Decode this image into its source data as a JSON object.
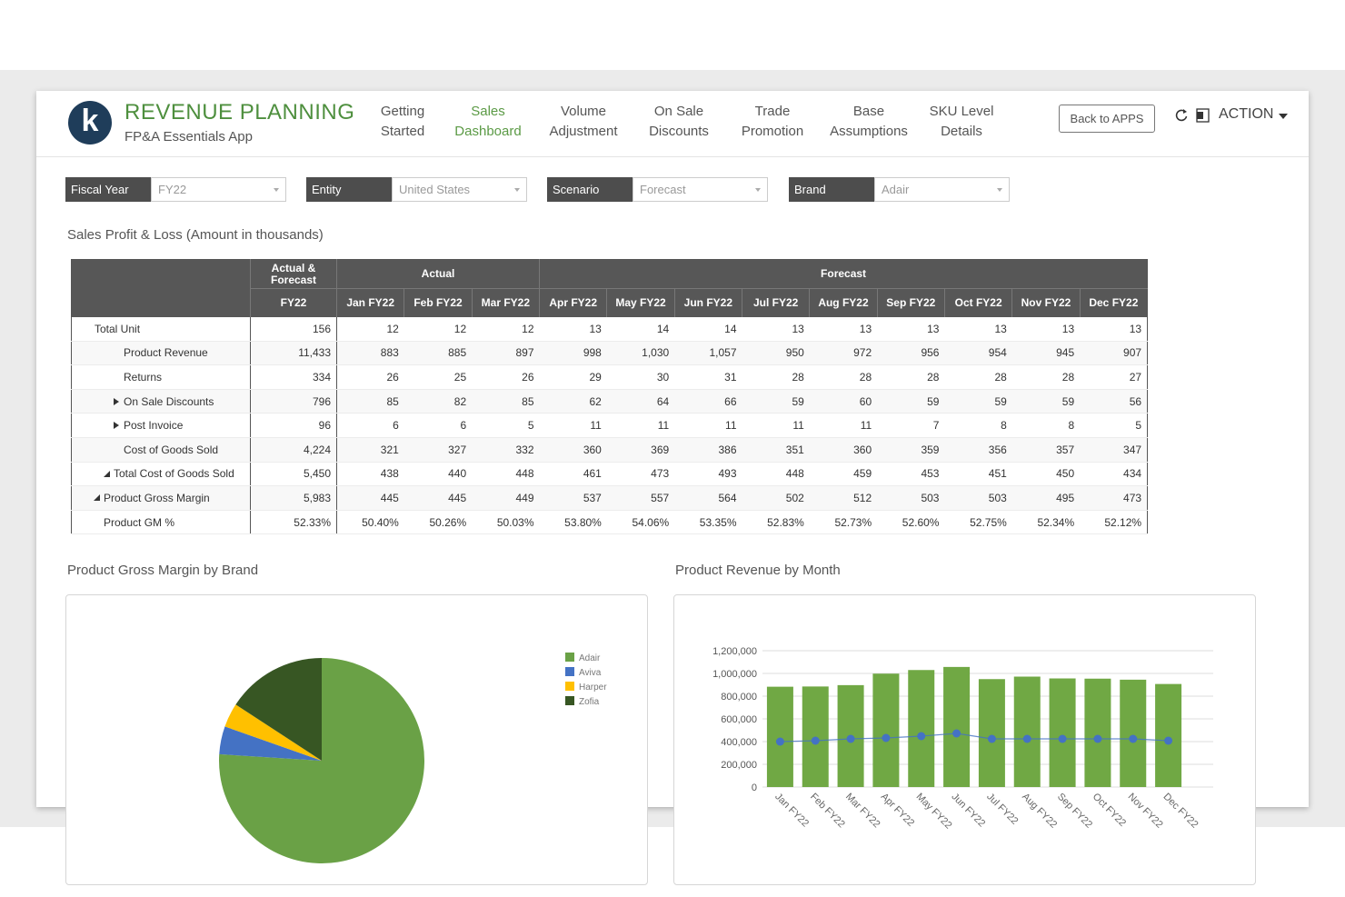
{
  "header": {
    "logo": "k",
    "title": "REVENUE PLANNING",
    "subtitle": "FP&A Essentials App"
  },
  "nav": [
    [
      "Getting",
      "Started"
    ],
    [
      "Sales",
      "Dashboard"
    ],
    [
      "Volume",
      "Adjustment"
    ],
    [
      "On Sale",
      "Discounts"
    ],
    [
      "Trade",
      "Promotion"
    ],
    [
      "Base",
      "Assumptions"
    ],
    [
      "SKU Level",
      "Details"
    ]
  ],
  "nav_active": 1,
  "buttons": {
    "back": "Back to APPS",
    "action": "ACTION"
  },
  "filters": [
    {
      "label": "Fiscal Year",
      "value": "FY22"
    },
    {
      "label": "Entity",
      "value": "United States"
    },
    {
      "label": "Scenario",
      "value": "Forecast"
    },
    {
      "label": "Brand",
      "value": "Adair"
    }
  ],
  "table": {
    "title": "Sales Profit & Loss (Amount in thousands)",
    "header_groups": [
      {
        "text": "Actual & Forecast",
        "span": 1
      },
      {
        "text": "Actual",
        "span": 3
      },
      {
        "text": "Forecast",
        "span": 9
      }
    ],
    "columns": [
      "FY22",
      "Jan FY22",
      "Feb FY22",
      "Mar FY22",
      "Apr FY22",
      "May FY22",
      "Jun FY22",
      "Jul FY22",
      "Aug FY22",
      "Sep FY22",
      "Oct FY22",
      "Nov FY22",
      "Dec FY22"
    ],
    "rows": [
      {
        "label": "Total Unit",
        "values": [
          "156",
          "12",
          "12",
          "12",
          "13",
          "14",
          "14",
          "13",
          "13",
          "13",
          "13",
          "13",
          "13"
        ]
      },
      {
        "label": "Product Revenue",
        "values": [
          "11,433",
          "883",
          "885",
          "897",
          "998",
          "1,030",
          "1,057",
          "950",
          "972",
          "956",
          "954",
          "945",
          "907"
        ]
      },
      {
        "label": "Returns",
        "values": [
          "334",
          "26",
          "25",
          "26",
          "29",
          "30",
          "31",
          "28",
          "28",
          "28",
          "28",
          "28",
          "27"
        ]
      },
      {
        "label": "On Sale Discounts",
        "values": [
          "796",
          "85",
          "82",
          "85",
          "62",
          "64",
          "66",
          "59",
          "60",
          "59",
          "59",
          "59",
          "56"
        ]
      },
      {
        "label": "Post Invoice",
        "values": [
          "96",
          "6",
          "6",
          "5",
          "11",
          "11",
          "11",
          "11",
          "11",
          "7",
          "8",
          "8",
          "5"
        ]
      },
      {
        "label": "Cost of Goods Sold",
        "values": [
          "4,224",
          "321",
          "327",
          "332",
          "360",
          "369",
          "386",
          "351",
          "360",
          "359",
          "356",
          "357",
          "347"
        ]
      },
      {
        "label": "Total Cost of Goods Sold",
        "values": [
          "5,450",
          "438",
          "440",
          "448",
          "461",
          "473",
          "493",
          "448",
          "459",
          "453",
          "451",
          "450",
          "434"
        ]
      },
      {
        "label": "Product Gross Margin",
        "values": [
          "5,983",
          "445",
          "445",
          "449",
          "537",
          "557",
          "564",
          "502",
          "512",
          "503",
          "503",
          "495",
          "473"
        ]
      },
      {
        "label": "Product GM %",
        "values": [
          "52.33%",
          "50.40%",
          "50.26%",
          "50.03%",
          "53.80%",
          "54.06%",
          "53.35%",
          "52.83%",
          "52.73%",
          "52.60%",
          "52.75%",
          "52.34%",
          "52.12%"
        ]
      }
    ]
  },
  "chart_data": [
    {
      "type": "pie",
      "title": "Product Gross Margin by Brand",
      "categories": [
        "Adair",
        "Aviva",
        "Harper",
        "Zofia"
      ],
      "values": [
        76,
        4.4,
        3.8,
        15.8
      ],
      "colors": [
        "#6aa146",
        "#4472c4",
        "#ffc000",
        "#375623"
      ],
      "legend": "right"
    },
    {
      "type": "bar",
      "title": "Product Revenue by Month",
      "categories": [
        "Jan FY22",
        "Feb FY22",
        "Mar FY22",
        "Apr FY22",
        "May FY22",
        "Jun FY22",
        "Jul FY22",
        "Aug FY22",
        "Sep FY22",
        "Oct FY22",
        "Nov FY22",
        "Dec FY22"
      ],
      "series": [
        {
          "type": "bar",
          "color": "#70a844",
          "values": [
            883000,
            885000,
            897000,
            998000,
            1030000,
            1057000,
            950000,
            972000,
            956000,
            954000,
            945000,
            907000
          ]
        },
        {
          "type": "line",
          "color": "#4472c4",
          "values": [
            400000,
            408000,
            424000,
            432000,
            448000,
            472000,
            424000,
            424000,
            424000,
            424000,
            424000,
            408000
          ]
        }
      ],
      "ylim": [
        0,
        1200000
      ],
      "yticks": [
        0,
        {
          "value": 200000,
          "label": "200,000"
        },
        {
          "value": 400000,
          "label": "400,000"
        },
        {
          "value": 600000,
          "label": "600,000"
        },
        {
          "value": 800000,
          "label": "800,000"
        },
        {
          "value": 1000000,
          "label": "1,000,000"
        },
        {
          "value": 1200000,
          "label": "1,200,000"
        }
      ],
      "grid": true
    }
  ]
}
